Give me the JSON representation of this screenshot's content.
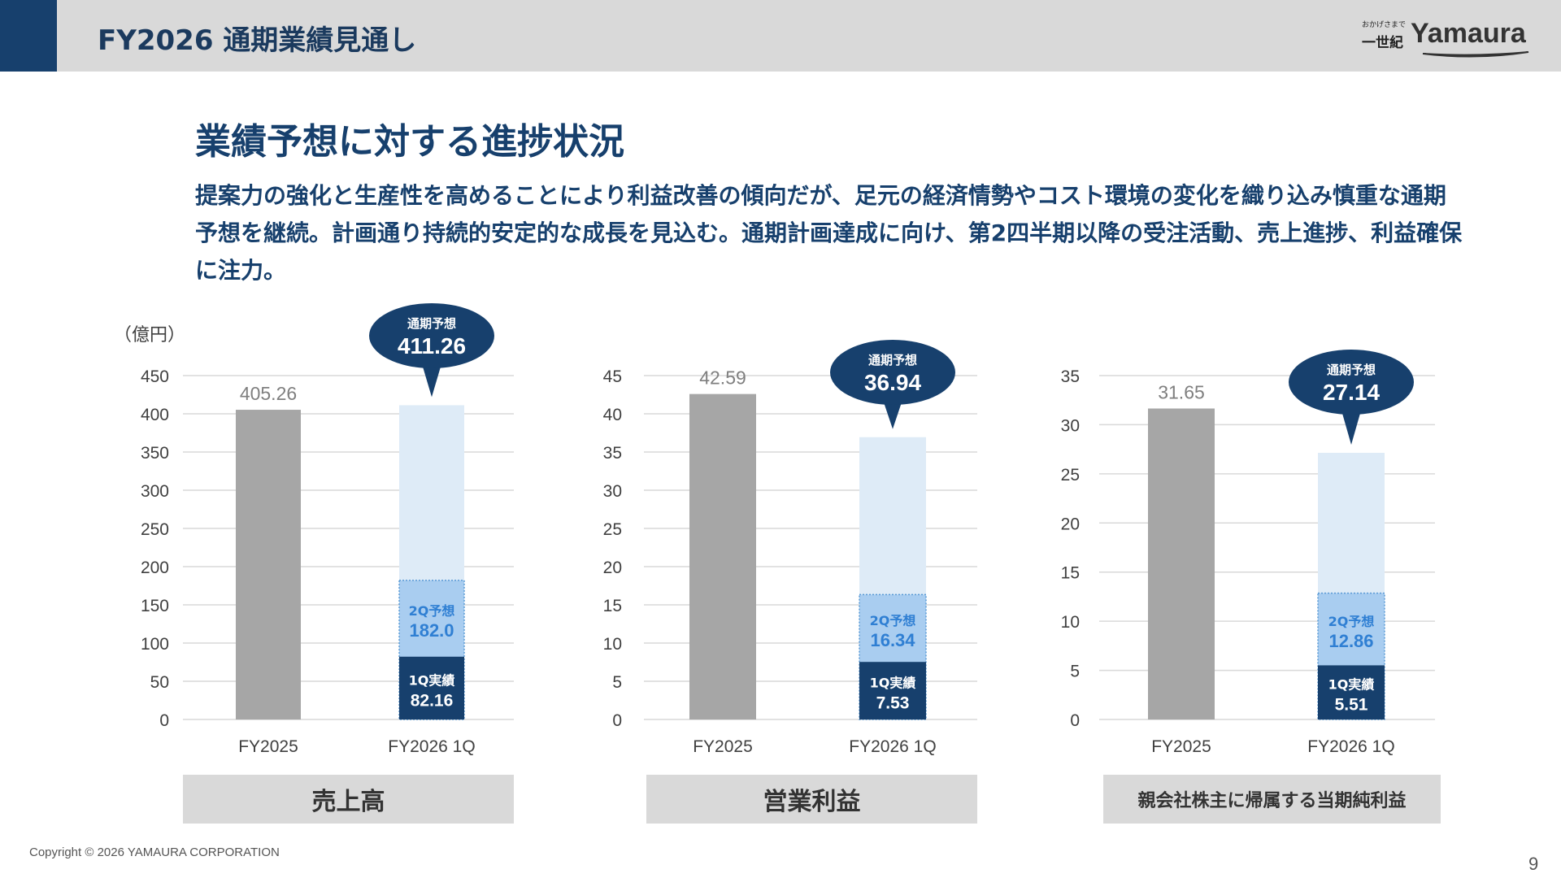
{
  "header": {
    "title": "FY2026 通期業績見通し",
    "logo_tagline_top": "おかげさまで",
    "logo_tagline_bottom": "一世紀",
    "logo_word": "Yamaura"
  },
  "section": {
    "title": "業績予想に対する進捗状況",
    "description": "提案力の強化と生産性を高めることにより利益改善の傾向だが、足元の経済情勢やコスト環境の変化を織り込み慎重な通期予想を継続。計画通り持続的安定的な成長を見込む。通期計画達成に向け、第2四半期以降の受注活動、売上進捗、利益確保に注力。"
  },
  "unit_label": "（億円）",
  "colors": {
    "navy": "#17406d",
    "gray_bar": "#a6a6a6",
    "light_blue": "#deebf7",
    "mid_blue": "#a9cdf0",
    "mid_blue_text": "#2f7fd3",
    "grid": "#d9d9d9"
  },
  "chart_data": [
    {
      "type": "bar",
      "title": "売上高",
      "categories": [
        "FY2025",
        "FY2026 1Q"
      ],
      "ylim": [
        0,
        450
      ],
      "yticks": [
        0,
        50,
        100,
        150,
        200,
        250,
        300,
        350,
        400,
        450
      ],
      "prior_year": {
        "value": 405.26,
        "label": "405.26"
      },
      "full_year_forecast": {
        "name": "通期予想",
        "value": 411.26,
        "label": "411.26"
      },
      "q2_forecast": {
        "name": "2Q予想",
        "value": 182.0,
        "label": "182.0"
      },
      "q1_actual": {
        "name": "1Q実績",
        "value": 82.16,
        "label": "82.16"
      }
    },
    {
      "type": "bar",
      "title": "営業利益",
      "categories": [
        "FY2025",
        "FY2026 1Q"
      ],
      "ylim": [
        0,
        45
      ],
      "yticks": [
        0,
        5,
        10,
        15,
        20,
        25,
        30,
        35,
        40,
        45
      ],
      "prior_year": {
        "value": 42.59,
        "label": "42.59"
      },
      "full_year_forecast": {
        "name": "通期予想",
        "value": 36.94,
        "label": "36.94"
      },
      "q2_forecast": {
        "name": "2Q予想",
        "value": 16.34,
        "label": "16.34"
      },
      "q1_actual": {
        "name": "1Q実績",
        "value": 7.53,
        "label": "7.53"
      }
    },
    {
      "type": "bar",
      "title": "親会社株主に帰属する当期純利益",
      "categories": [
        "FY2025",
        "FY2026 1Q"
      ],
      "ylim": [
        0,
        35
      ],
      "yticks": [
        0,
        5,
        10,
        15,
        20,
        25,
        30,
        35
      ],
      "prior_year": {
        "value": 31.65,
        "label": "31.65"
      },
      "full_year_forecast": {
        "name": "通期予想",
        "value": 27.14,
        "label": "27.14"
      },
      "q2_forecast": {
        "name": "2Q予想",
        "value": 12.86,
        "label": "12.86"
      },
      "q1_actual": {
        "name": "1Q実績",
        "value": 5.51,
        "label": "5.51"
      }
    }
  ],
  "footer": {
    "copyright": "Copyright © 2026 YAMAURA CORPORATION",
    "page_number": "9"
  }
}
